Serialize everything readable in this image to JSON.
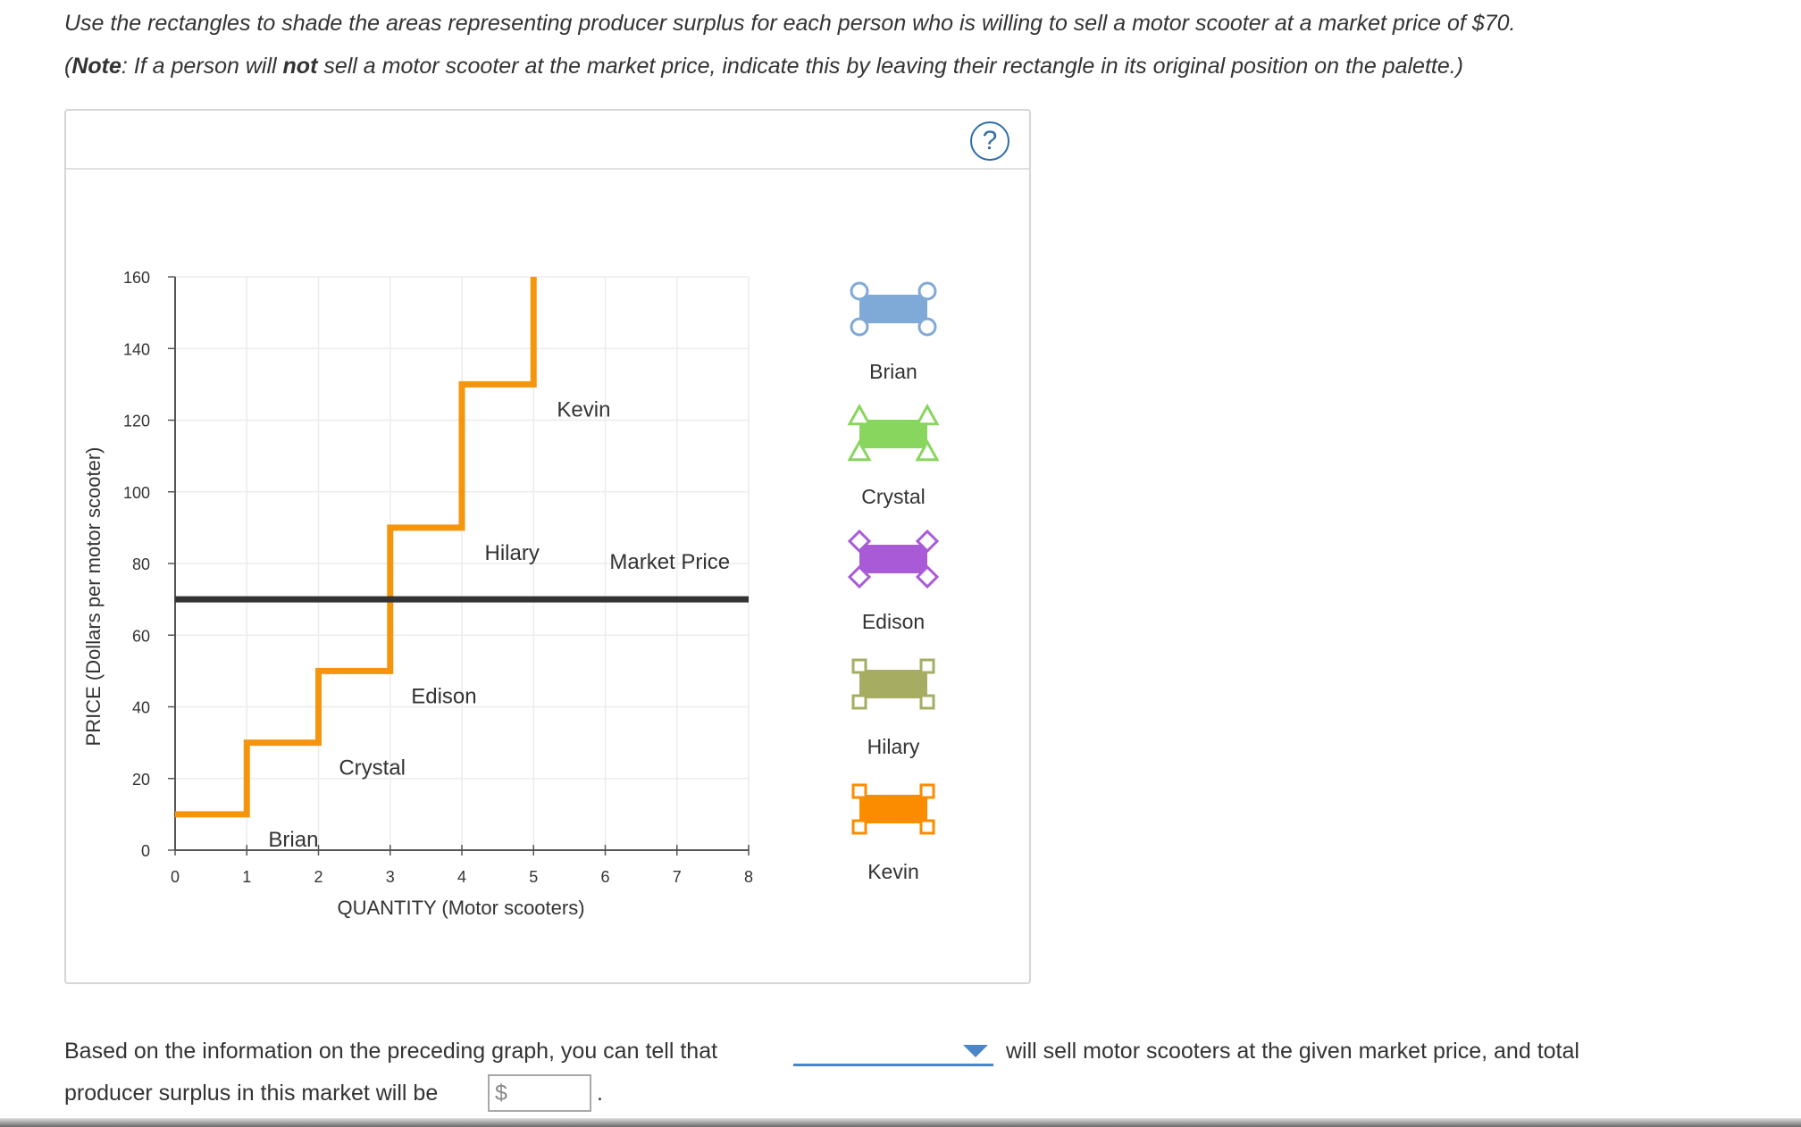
{
  "instructions": {
    "line1": "Use the rectangles to shade the areas representing producer surplus for each person who is willing to sell a motor scooter at a market price of $70.",
    "line2_open": "(",
    "line2_note": "Note",
    "line2_a": ": If a person will ",
    "line2_not": "not",
    "line2_b": " sell a motor scooter at the market price, indicate this by leaving their rectangle in its original position on the palette.)"
  },
  "help": {
    "label": "?"
  },
  "chart_data": {
    "type": "line",
    "xlabel": "QUANTITY (Motor scooters)",
    "ylabel": "PRICE (Dollars per motor scooter)",
    "xlim": [
      0,
      8
    ],
    "ylim": [
      0,
      160
    ],
    "x_ticks": [
      "0",
      "1",
      "2",
      "3",
      "4",
      "5",
      "6",
      "7",
      "8"
    ],
    "y_ticks": [
      "0",
      "20",
      "40",
      "60",
      "80",
      "100",
      "120",
      "140",
      "160"
    ],
    "grid": true,
    "series": [
      {
        "type": "step",
        "color": "#f5950e",
        "points": [
          [
            0,
            10
          ],
          [
            1,
            10
          ],
          [
            1,
            30
          ],
          [
            2,
            30
          ],
          [
            2,
            50
          ],
          [
            3,
            50
          ],
          [
            3,
            90
          ],
          [
            4,
            90
          ],
          [
            4,
            130
          ],
          [
            5,
            130
          ],
          [
            5,
            160
          ]
        ]
      },
      {
        "type": "hline",
        "color": "#333333",
        "y": 70
      }
    ],
    "annotations": [
      {
        "text": "Brian",
        "x": 1.65,
        "y": 10
      },
      {
        "text": "Crystal",
        "x": 2.75,
        "y": 30
      },
      {
        "text": "Edison",
        "x": 3.75,
        "y": 50
      },
      {
        "text": "Hilary",
        "x": 4.7,
        "y": 90
      },
      {
        "text": "Kevin",
        "x": 5.7,
        "y": 130
      },
      {
        "text": "Market Price",
        "x": 6.9,
        "y": 75
      }
    ]
  },
  "palette": [
    {
      "name": "Brian",
      "color": "#7fa9d6",
      "handle": "circle",
      "handle_color": "#7fa9d6"
    },
    {
      "name": "Crystal",
      "color": "#88d65e",
      "handle": "triangle",
      "handle_color": "#88d65e"
    },
    {
      "name": "Edison",
      "color": "#a95ad6",
      "handle": "diamond",
      "handle_color": "#a95ad6"
    },
    {
      "name": "Hilary",
      "color": "#a6ad62",
      "handle": "square-bracket",
      "handle_color": "#a6ad62"
    },
    {
      "name": "Kevin",
      "color": "#fb8c00",
      "handle": "square-bracket",
      "handle_color": "#fb8c00"
    }
  ],
  "question": {
    "text_before": "Based on the information on the preceding graph, you can tell that",
    "dropdown_selected": "",
    "text_after": "will sell motor scooters at the given market price, and total",
    "line2": "producer surplus in this market will be",
    "currency_prefix": "$",
    "input_value": "",
    "period": "."
  }
}
